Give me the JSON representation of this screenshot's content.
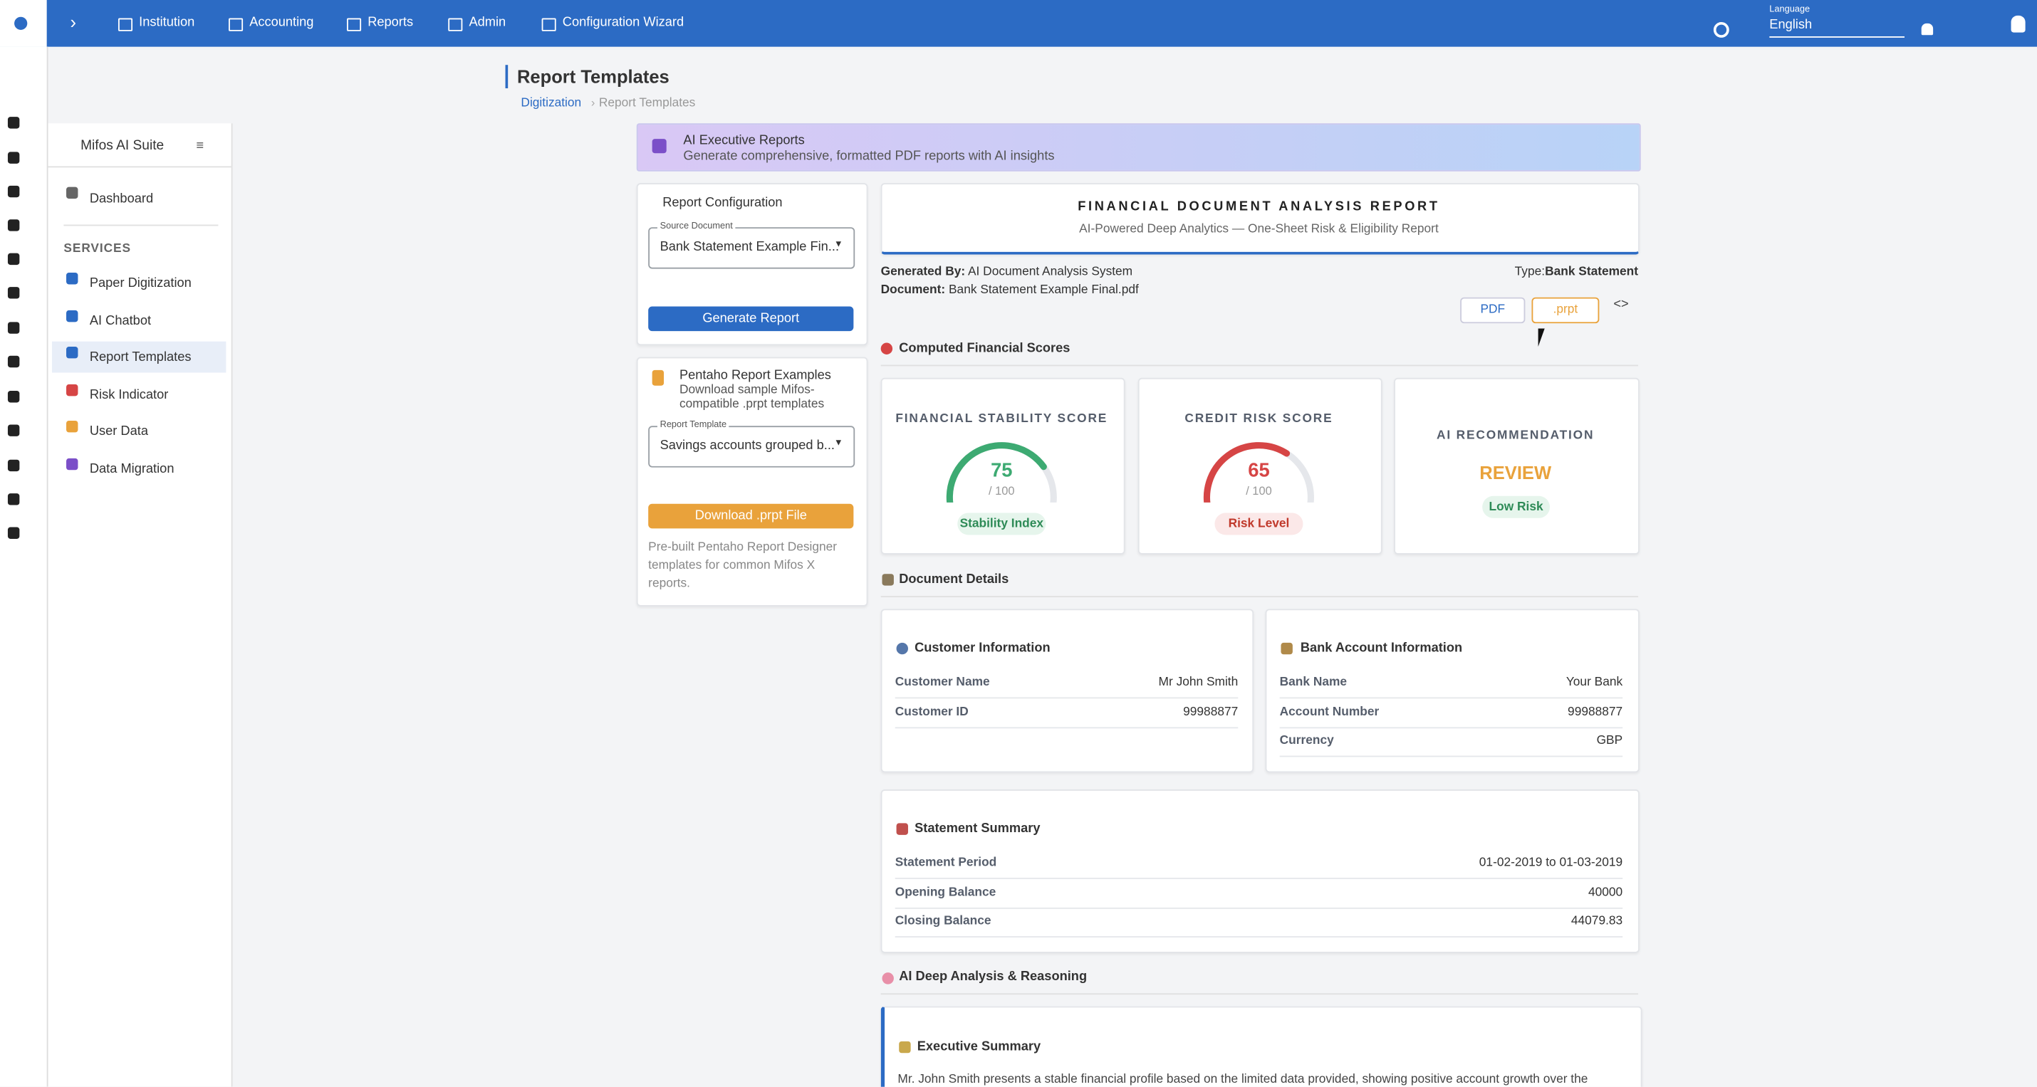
{
  "topbar": {
    "nav": [
      "Institution",
      "Accounting",
      "Reports",
      "Admin",
      "Configuration Wizard"
    ],
    "language_label": "Language",
    "language": "English"
  },
  "page": {
    "title": "Report Templates",
    "breadcrumb": [
      "Digitization",
      "Report Templates"
    ]
  },
  "sidebar": {
    "title": "Mifos AI Suite",
    "dashboard": "Dashboard",
    "section": "SERVICES",
    "items": [
      "Paper Digitization",
      "AI Chatbot",
      "Report Templates",
      "Risk Indicator",
      "User Data",
      "Data Migration"
    ]
  },
  "banner": {
    "title": "AI Executive Reports",
    "subtitle": "Generate comprehensive, formatted PDF reports with AI insights"
  },
  "config": {
    "title": "Report Configuration",
    "source_label": "Source Document",
    "source_value": "Bank Statement Example Fin...",
    "generate": "Generate Report"
  },
  "pentaho": {
    "title": "Pentaho Report Examples",
    "subtitle": "Download sample Mifos-compatible .prpt templates",
    "template_label": "Report Template",
    "template_value": "Savings accounts grouped b...",
    "download": "Download .prpt File",
    "note": "Pre-built Pentaho Report Designer templates for common Mifos X reports."
  },
  "report": {
    "title": "FINANCIAL DOCUMENT ANALYSIS REPORT",
    "subtitle": "AI-Powered Deep Analytics — One-Sheet Risk & Eligibility Report",
    "generated_by_label": "Generated By:",
    "generated_by": "AI Document Analysis System",
    "document_label": "Document:",
    "document": "Bank Statement Example Final.pdf",
    "type_label": "Type:",
    "type": "Bank Statement",
    "buttons": [
      "PDF",
      ".prpt"
    ],
    "scores_heading": "Computed Financial Scores",
    "scores": [
      {
        "title": "FINANCIAL STABILITY SCORE",
        "value": 75,
        "max": 100,
        "max_label": "/ 100",
        "badge": "Stability Index",
        "color": "#3daa72"
      },
      {
        "title": "CREDIT RISK SCORE",
        "value": 65,
        "max": 100,
        "max_label": "/ 100",
        "badge": "Risk Level",
        "color": "#d64545"
      }
    ],
    "recommendation": {
      "title": "AI RECOMMENDATION",
      "value": "REVIEW",
      "badge": "Low Risk"
    },
    "details_heading": "Document Details",
    "customer": {
      "title": "Customer Information",
      "rows": [
        [
          "Customer Name",
          "Mr John Smith"
        ],
        [
          "Customer ID",
          "99988877"
        ]
      ]
    },
    "bank": {
      "title": "Bank Account Information",
      "rows": [
        [
          "Bank Name",
          "Your Bank"
        ],
        [
          "Account Number",
          "99988877"
        ],
        [
          "Currency",
          "GBP"
        ]
      ]
    },
    "statement": {
      "title": "Statement Summary",
      "rows": [
        [
          "Statement Period",
          "01-02-2019 to 01-03-2019"
        ],
        [
          "Opening Balance",
          "40000"
        ],
        [
          "Closing Balance",
          "44079.83"
        ]
      ]
    },
    "analysis_heading": "AI Deep Analysis & Reasoning",
    "executive": {
      "title": "Executive Summary",
      "text": "Mr. John Smith presents a stable financial profile based on the limited data provided, showing positive account growth over the"
    }
  }
}
